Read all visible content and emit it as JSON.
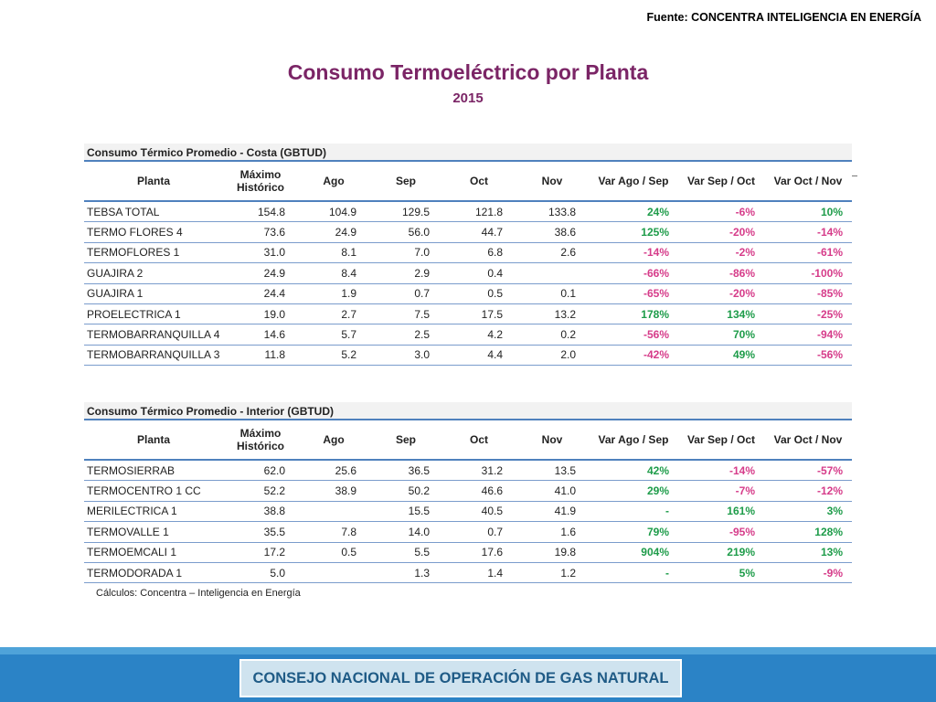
{
  "source": "Fuente: CONCENTRA INTELIGENCIA EN ENERGÍA",
  "title": "Consumo Termoeléctrico por Planta",
  "subtitle": "2015",
  "headers": {
    "planta": "Planta",
    "maximo": "Máximo",
    "historico": "Histórico",
    "ago": "Ago",
    "sep": "Sep",
    "oct": "Oct",
    "nov": "Nov",
    "var1": "Var Ago / Sep",
    "var2": "Var Sep / Oct",
    "var3": "Var Oct / Nov"
  },
  "costa": {
    "title": "Consumo Térmico Promedio - Costa (GBTUD)",
    "rows": [
      [
        "TEBSA TOTAL",
        "154.8",
        "104.9",
        "129.5",
        "121.8",
        "133.8",
        "24%",
        "-6%",
        "10%"
      ],
      [
        "TERMO FLORES 4",
        "73.6",
        "24.9",
        "56.0",
        "44.7",
        "38.6",
        "125%",
        "-20%",
        "-14%"
      ],
      [
        "TERMOFLORES 1",
        "31.0",
        "8.1",
        "7.0",
        "6.8",
        "2.6",
        "-14%",
        "-2%",
        "-61%"
      ],
      [
        "GUAJIRA 2",
        "24.9",
        "8.4",
        "2.9",
        "0.4",
        "",
        "-66%",
        "-86%",
        "-100%"
      ],
      [
        "GUAJIRA 1",
        "24.4",
        "1.9",
        "0.7",
        "0.5",
        "0.1",
        "-65%",
        "-20%",
        "-85%"
      ],
      [
        "PROELECTRICA 1",
        "19.0",
        "2.7",
        "7.5",
        "17.5",
        "13.2",
        "178%",
        "134%",
        "-25%"
      ],
      [
        "TERMOBARRANQUILLA 4",
        "14.6",
        "5.7",
        "2.5",
        "4.2",
        "0.2",
        "-56%",
        "70%",
        "-94%"
      ],
      [
        "TERMOBARRANQUILLA 3",
        "11.8",
        "5.2",
        "3.0",
        "4.4",
        "2.0",
        "-42%",
        "49%",
        "-56%"
      ]
    ]
  },
  "interior": {
    "title": "Consumo Térmico Promedio - Interior (GBTUD)",
    "rows": [
      [
        "TERMOSIERRAB",
        "62.0",
        "25.6",
        "36.5",
        "31.2",
        "13.5",
        "42%",
        "-14%",
        "-57%"
      ],
      [
        "TERMOCENTRO 1 CC",
        "52.2",
        "38.9",
        "50.2",
        "46.6",
        "41.0",
        "29%",
        "-7%",
        "-12%"
      ],
      [
        "MERILECTRICA 1",
        "38.8",
        "",
        "15.5",
        "40.5",
        "41.9",
        "-",
        "161%",
        "3%"
      ],
      [
        "TERMOVALLE 1",
        "35.5",
        "7.8",
        "14.0",
        "0.7",
        "1.6",
        "79%",
        "-95%",
        "128%"
      ],
      [
        "TERMOEMCALI 1",
        "17.2",
        "0.5",
        "5.5",
        "17.6",
        "19.8",
        "904%",
        "219%",
        "13%"
      ],
      [
        "TERMODORADA 1",
        "5.0",
        "",
        "1.3",
        "1.4",
        "1.2",
        "-",
        "5%",
        "-9%"
      ]
    ]
  },
  "calc_note": "Cálculos: Concentra – Inteligencia en Energía",
  "footer": "CONSEJO NACIONAL DE OPERACIÓN DE GAS NATURAL",
  "colors": {
    "title": "#7b2566",
    "positive": "#1e9c4a",
    "negative": "#d63c8a",
    "footer_band": "#2b83c6"
  }
}
